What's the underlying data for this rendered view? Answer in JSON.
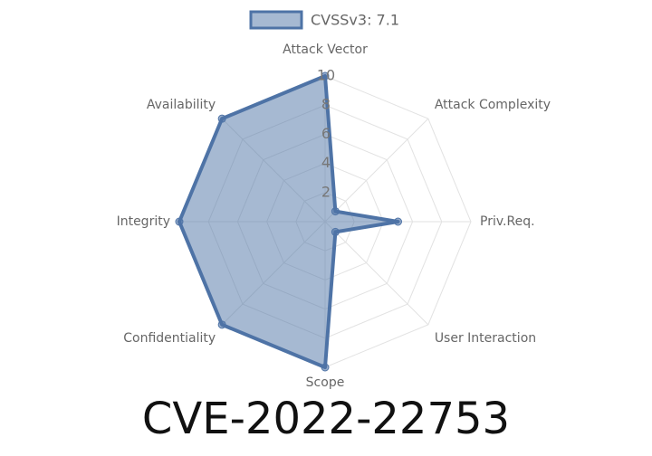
{
  "chart_data": {
    "type": "radar",
    "title": "CVE-2022-22753",
    "categories": [
      "Attack Vector",
      "Attack Complexity",
      "Priv.Req.",
      "User Interaction",
      "Scope",
      "Confidentiality",
      "Integrity",
      "Availability"
    ],
    "series": [
      {
        "name": "CVSSv3: 7.1",
        "color": "#4e73a6",
        "values": [
          10,
          1,
          5,
          1,
          10,
          10,
          10,
          10
        ]
      }
    ],
    "ylim": [
      0,
      10
    ],
    "yticks": [
      2,
      4,
      6,
      8,
      10
    ],
    "grid": true,
    "legend": "top"
  }
}
